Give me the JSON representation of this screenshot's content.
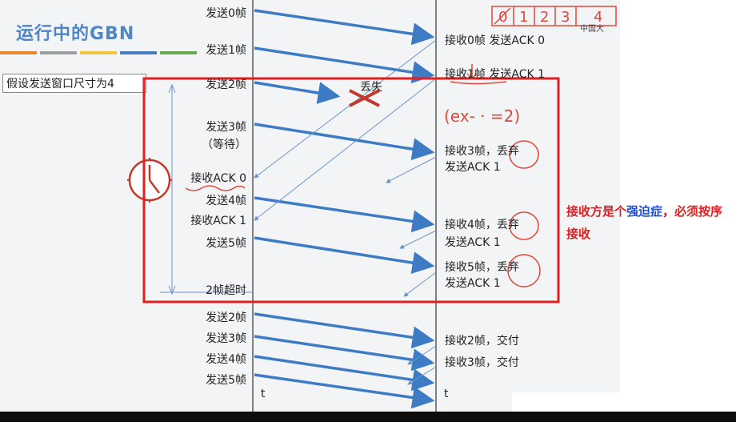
{
  "title": "运行中的GBN",
  "stripe_colors": [
    "#e8872c",
    "#9e9e9e",
    "#f2c43a",
    "#4a7cc0",
    "#6aa84f"
  ],
  "assumption": "假设发送窗口尺寸为4",
  "sender_labels": {
    "send0": "发送0帧",
    "send1": "发送1帧",
    "send2": "发送2帧",
    "send3": "发送3帧",
    "wait": "（等待）",
    "ack0": "接收ACK 0",
    "send4": "发送4帧",
    "ack1": "接收ACK 1",
    "send5": "发送5帧",
    "timeout": "2帧超时",
    "resend2": "发送2帧",
    "resend3": "发送3帧",
    "resend4": "发送4帧",
    "resend5": "发送5帧"
  },
  "lost_label": "丢失",
  "receiver_labels": {
    "r0a": "接收0帧 发送ACK 0",
    "r1a": "接收1帧 发送ACK 1",
    "r3a": "接收3帧，丢弃",
    "r3b": "发送ACK 1",
    "r4a": "接收4帧，丢弃",
    "r4b": "发送ACK 1",
    "r5a": "接收5帧，丢弃",
    "r5b": "发送ACK 1",
    "r2": "接收2帧，交付",
    "r3": "接收3帧，交付"
  },
  "time_axis_label": "t",
  "handwriting": {
    "window_seq": [
      "0",
      "1",
      "2",
      "3",
      "4"
    ],
    "expect": "(ex- · =2)"
  },
  "note": {
    "part1": "接收方是个",
    "part2": "强迫症",
    "part3": "，必须按序接收"
  },
  "logo_text": "中国大",
  "colors": {
    "arrow": "#3d7cc4",
    "highlight": "#e02020",
    "title": "#4f87c6"
  }
}
